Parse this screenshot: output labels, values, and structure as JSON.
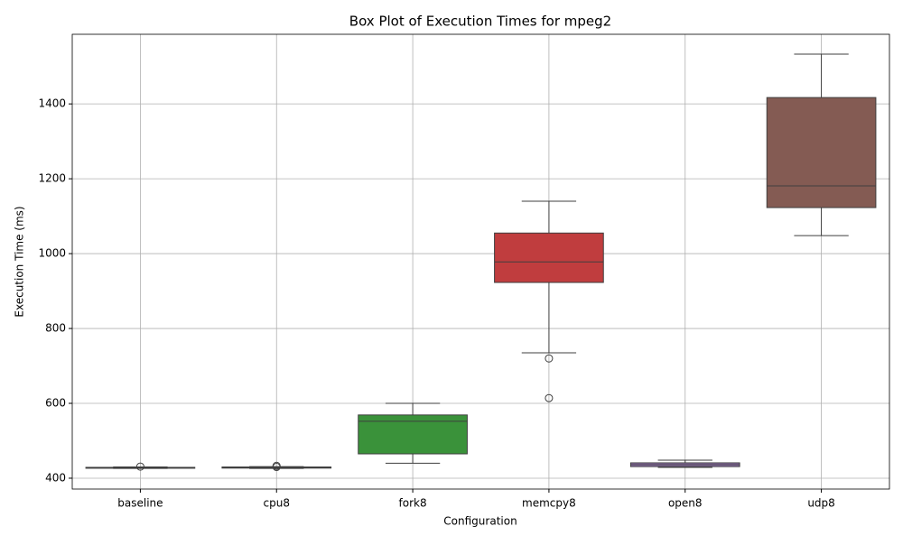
{
  "chart_data": {
    "type": "box",
    "title": "Box Plot of Execution Times for mpeg2",
    "x_label": "Configuration",
    "y_label": "Execution Time (ms)",
    "categories": [
      "baseline",
      "cpu8",
      "fork8",
      "memcpy8",
      "open8",
      "udp8"
    ],
    "colors": [
      "#3274a1",
      "#e1812c",
      "#3a923a",
      "#c03d3e",
      "#9372b2",
      "#845b53"
    ],
    "boxes": [
      {
        "whislo": 426,
        "q1": 427,
        "med": 428,
        "q3": 429,
        "whishi": 430,
        "fliers": [
          431
        ]
      },
      {
        "whislo": 426,
        "q1": 427,
        "med": 428,
        "q3": 430,
        "whishi": 431,
        "fliers": [
          433,
          430
        ]
      },
      {
        "whislo": 440,
        "q1": 465,
        "med": 552,
        "q3": 569,
        "whishi": 600,
        "fliers": []
      },
      {
        "whislo": 735,
        "q1": 923,
        "med": 978,
        "q3": 1055,
        "whishi": 1140,
        "fliers": [
          720,
          614
        ]
      },
      {
        "whislo": 429,
        "q1": 431,
        "med": 436,
        "q3": 441,
        "whishi": 448,
        "fliers": []
      },
      {
        "whislo": 1048,
        "q1": 1123,
        "med": 1181,
        "q3": 1417,
        "whishi": 1533,
        "fliers": []
      }
    ],
    "ylim": [
      371,
      1586
    ],
    "yticks": [
      400,
      600,
      800,
      1000,
      1200,
      1400
    ],
    "grid": true
  }
}
